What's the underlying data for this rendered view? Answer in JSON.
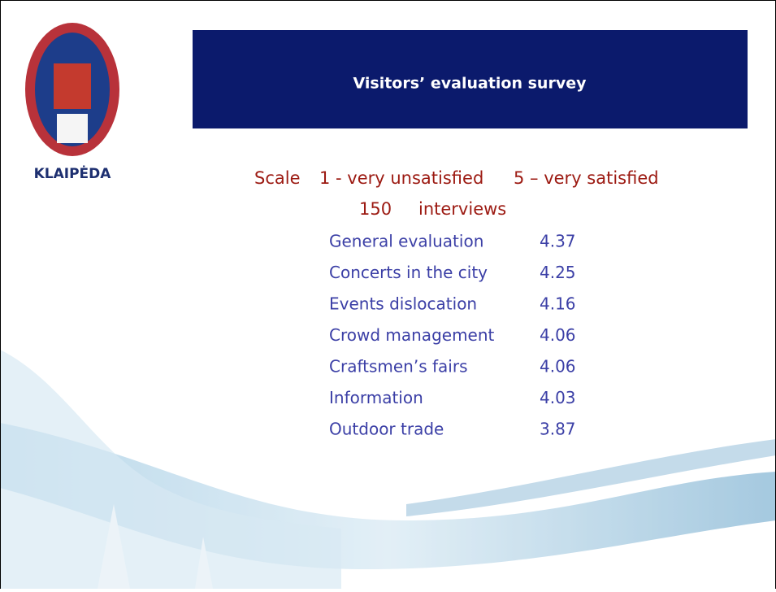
{
  "logo": {
    "name": "KLAIPĖDA"
  },
  "header": {
    "title": "Visitors’ evaluation survey"
  },
  "scale": {
    "label": "Scale",
    "low": "1 - very unsatisfied",
    "high": "5 – very satisfied"
  },
  "interviews": {
    "count": 150,
    "label": "interviews"
  },
  "table": {
    "rows": [
      [
        "General evaluation",
        4.37
      ],
      [
        "Concerts in the city",
        4.25
      ],
      [
        "Events dislocation",
        4.16
      ],
      [
        "Crowd management",
        4.06
      ],
      [
        "Craftsmen’s fairs",
        4.06
      ],
      [
        "Information",
        4.03
      ],
      [
        "Outdoor trade",
        3.87
      ]
    ]
  }
}
